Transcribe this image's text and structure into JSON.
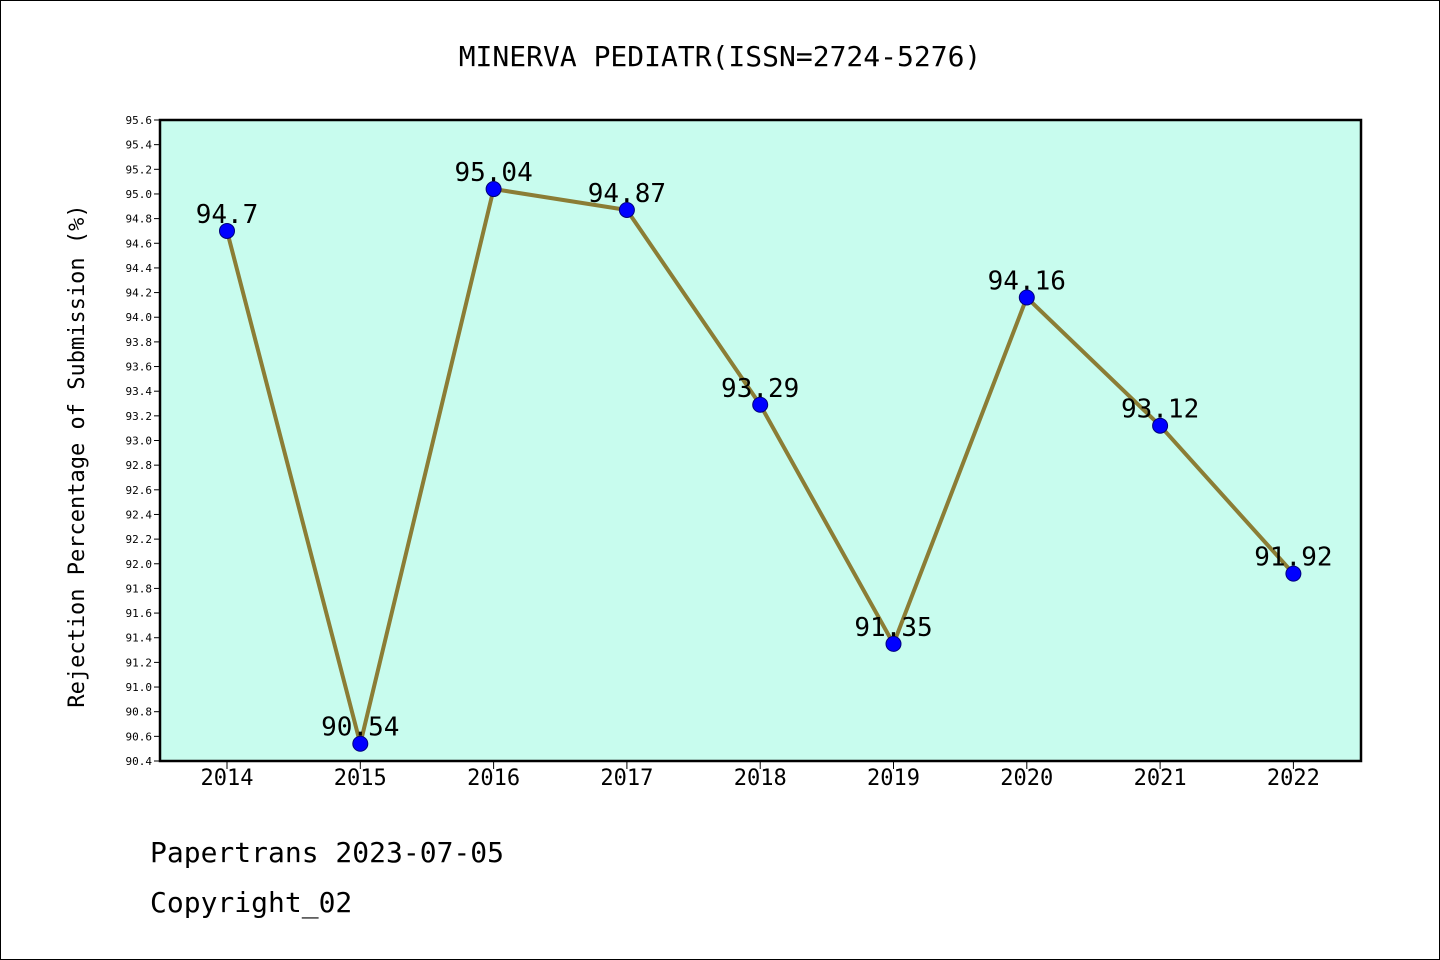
{
  "chart_data": {
    "type": "line",
    "title": "MINERVA PEDIATR(ISSN=2724-5276)",
    "xlabel": "",
    "ylabel": "Rejection Percentage of Submission (%)",
    "categories": [
      "2014",
      "2015",
      "2016",
      "2017",
      "2018",
      "2019",
      "2020",
      "2021",
      "2022"
    ],
    "series": [
      {
        "values": [
          94.7,
          90.54,
          95.04,
          94.87,
          93.29,
          91.35,
          94.16,
          93.12,
          91.92
        ],
        "data_labels": [
          "94.7",
          "90.54",
          "95.04",
          "94.87",
          "93.29",
          "91.35",
          "94.16",
          "93.12",
          "91.92"
        ]
      }
    ],
    "ylim": [
      90.4,
      95.6
    ],
    "yticks": [
      "90.4",
      "90.6",
      "90.8",
      "91.0",
      "91.2",
      "91.4",
      "91.6",
      "91.8",
      "92.0",
      "92.2",
      "92.4",
      "92.6",
      "92.8",
      "93.0",
      "93.2",
      "93.4",
      "93.6",
      "93.8",
      "94.0",
      "94.2",
      "94.4",
      "94.6",
      "94.8",
      "95.0",
      "95.2",
      "95.4",
      "95.6"
    ],
    "grid": false,
    "colors": {
      "plot_background": "#c8fcee",
      "line": "#8b7d35",
      "marker": "#0000ff"
    }
  },
  "footer": {
    "source": "Papertrans 2023-07-05",
    "copyright": "Copyright_02"
  }
}
